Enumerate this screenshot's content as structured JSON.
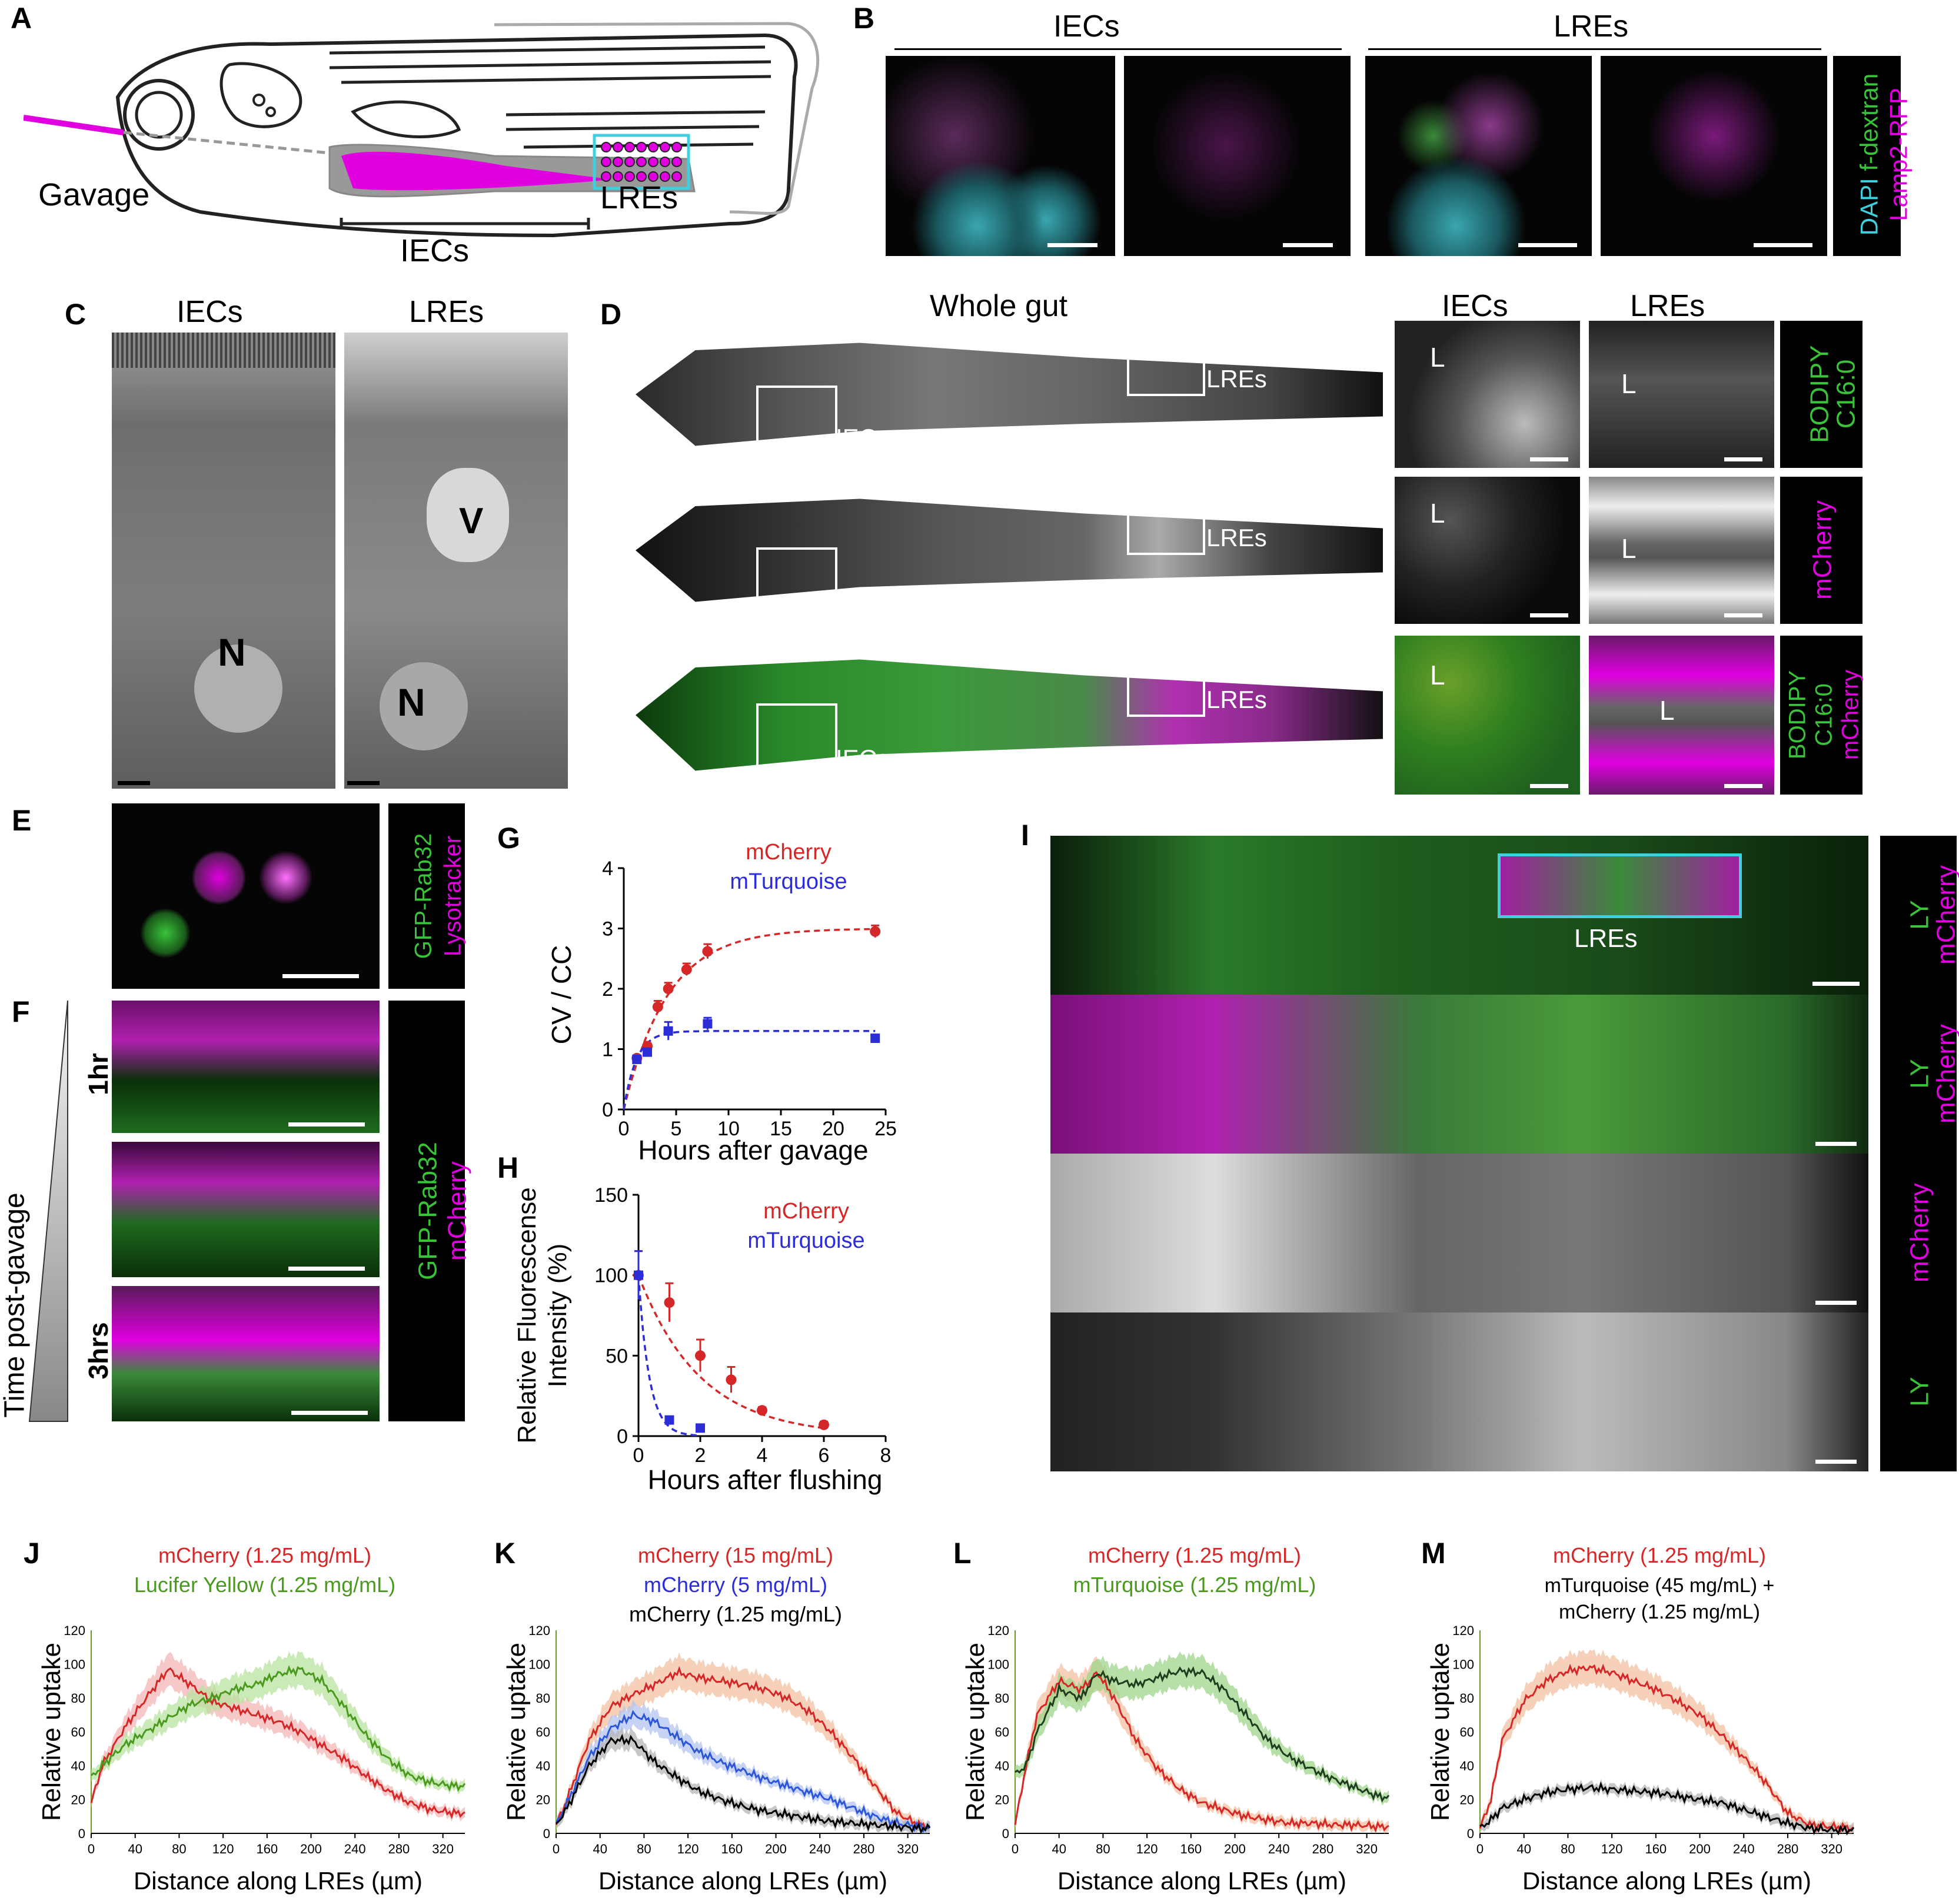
{
  "panels": {
    "A": {
      "letter": "A",
      "gavage": "Gavage",
      "lres": "LREs",
      "iecs": "IECs"
    },
    "B": {
      "letter": "B",
      "iecs": "IECs",
      "lres": "LREs",
      "dapi": "DAPI",
      "fdextran": "f-dextran",
      "lamp2": "Lamp2-RFP"
    },
    "C": {
      "letter": "C",
      "iecs": "IECs",
      "lres": "LREs",
      "n1": "N",
      "n2": "N",
      "v": "V"
    },
    "D": {
      "letter": "D",
      "whole_gut": "Whole gut",
      "iecs": "IECs",
      "lres": "LREs",
      "box_lres": "LREs",
      "box_iecs": "IECs",
      "L": "L",
      "row1_label": [
        "BODIPY",
        "C16:0"
      ],
      "row2_label": "mCherry",
      "row3_label": [
        "BODIPY",
        "C16:0",
        "mCherry"
      ]
    },
    "E": {
      "letter": "E",
      "gfp": "GFP-Rab32",
      "lyso": "Lysotracker"
    },
    "F": {
      "letter": "F",
      "time": "Time post-gavage",
      "t1": "1hr",
      "t3": "3hrs",
      "gfp": "GFP-Rab32",
      "mcherry": "mCherry"
    },
    "G": {
      "letter": "G"
    },
    "H": {
      "letter": "H"
    },
    "I": {
      "letter": "I",
      "lres": "LREs",
      "ly": "LY",
      "mcherry": "mCherry"
    },
    "J": {
      "letter": "J"
    },
    "K": {
      "letter": "K"
    },
    "L": {
      "letter": "L"
    },
    "M": {
      "letter": "M"
    }
  },
  "colors": {
    "magenta": "#e000e0",
    "green": "#39c339",
    "cyan": "#3fd0e0",
    "red": "#d62728",
    "blue": "#2d2dd8",
    "black": "#000000",
    "olive_green": "#4a9a1e"
  },
  "chart_data": [
    {
      "id": "G",
      "type": "scatter",
      "xlabel": "Hours after gavage",
      "ylabel": "CV / CC",
      "xlim": [
        0,
        25
      ],
      "ylim": [
        0,
        4
      ],
      "xticks": [
        "0",
        "5",
        "10",
        "15",
        "20",
        "25"
      ],
      "yticks": [
        "0",
        "1",
        "2",
        "3",
        "4"
      ],
      "series": [
        {
          "name": "mCherry",
          "color": "#d62728",
          "x": [
            1.25,
            2.25,
            3.25,
            4.25,
            6,
            8,
            24
          ],
          "y": [
            0.85,
            1.05,
            1.7,
            2.0,
            2.32,
            2.62,
            2.95
          ],
          "err": [
            0.05,
            0.05,
            0.1,
            0.1,
            0.1,
            0.12,
            0.1
          ]
        },
        {
          "name": "mTurquoise",
          "color": "#2d2dd8",
          "x": [
            1.25,
            2.25,
            4.25,
            8,
            24
          ],
          "y": [
            0.83,
            0.95,
            1.3,
            1.42,
            1.18
          ],
          "err": [
            0.05,
            0.05,
            0.15,
            0.1,
            0.05
          ]
        }
      ]
    },
    {
      "id": "H",
      "type": "scatter",
      "xlabel": "Hours after flushing",
      "ylabel": "Relative Fluorescense Intensity (%)",
      "xlim": [
        0,
        8
      ],
      "ylim": [
        0,
        150
      ],
      "xticks": [
        "0",
        "2",
        "4",
        "6",
        "8"
      ],
      "yticks": [
        "0",
        "50",
        "100",
        "150"
      ],
      "series": [
        {
          "name": "mCherry",
          "color": "#d62728",
          "x": [
            0,
            1,
            2,
            3,
            4,
            6
          ],
          "y": [
            100,
            83,
            50,
            35,
            16,
            7
          ],
          "err": [
            15,
            12,
            10,
            8,
            2,
            2
          ]
        },
        {
          "name": "mTurquoise",
          "color": "#2d2dd8",
          "x": [
            0,
            1,
            2
          ],
          "y": [
            100,
            10,
            5
          ],
          "err": [
            15,
            2,
            1
          ]
        }
      ]
    },
    {
      "id": "J",
      "type": "line",
      "xlabel": "Distance along LREs (µm)",
      "ylabel": "Relative uptake",
      "xlim": [
        0,
        340
      ],
      "ylim": [
        0,
        120
      ],
      "xticks": [
        "0",
        "40",
        "80",
        "120",
        "160",
        "200",
        "240",
        "280",
        "320"
      ],
      "yticks": [
        "0",
        "20",
        "40",
        "60",
        "80",
        "100",
        "120"
      ],
      "series": [
        {
          "name": "mCherry (1.25 mg/mL)",
          "color": "#d62728",
          "band": "#f4b6b6",
          "x": [
            0,
            10,
            30,
            50,
            70,
            90,
            110,
            130,
            150,
            170,
            190,
            210,
            230,
            250,
            270,
            290,
            310,
            330,
            340
          ],
          "y": [
            18,
            40,
            62,
            80,
            97,
            88,
            78,
            74,
            70,
            66,
            60,
            52,
            44,
            34,
            25,
            18,
            14,
            12,
            12
          ]
        },
        {
          "name": "Lucifer Yellow (1.25 mg/mL)",
          "color": "#4a9a1e",
          "band": "#b8e3a0",
          "x": [
            0,
            10,
            30,
            50,
            70,
            90,
            110,
            130,
            150,
            170,
            190,
            210,
            230,
            250,
            270,
            290,
            310,
            330,
            340
          ],
          "y": [
            33,
            40,
            52,
            60,
            68,
            76,
            80,
            85,
            88,
            94,
            97,
            90,
            75,
            58,
            44,
            34,
            30,
            28,
            28
          ]
        }
      ]
    },
    {
      "id": "K",
      "type": "line",
      "xlabel": "Distance along LREs (µm)",
      "ylabel": "Relative uptake",
      "xlim": [
        0,
        340
      ],
      "ylim": [
        0,
        120
      ],
      "xticks": [
        "0",
        "40",
        "80",
        "120",
        "160",
        "200",
        "240",
        "280",
        "320"
      ],
      "yticks": [
        "0",
        "20",
        "40",
        "60",
        "80",
        "100",
        "120"
      ],
      "series": [
        {
          "name": "mCherry (15 mg/mL)",
          "color": "#d62728",
          "band": "#f3c0a0",
          "x": [
            0,
            10,
            30,
            50,
            70,
            90,
            110,
            130,
            150,
            170,
            190,
            210,
            230,
            250,
            270,
            290,
            310,
            330,
            340
          ],
          "y": [
            5,
            20,
            55,
            75,
            82,
            88,
            95,
            92,
            90,
            88,
            85,
            80,
            72,
            60,
            45,
            28,
            12,
            5,
            4
          ]
        },
        {
          "name": "mCherry (5 mg/mL)",
          "color": "#2d56d8",
          "band": "#b3c4f0",
          "x": [
            0,
            10,
            30,
            50,
            70,
            90,
            110,
            130,
            150,
            170,
            190,
            210,
            230,
            250,
            270,
            290,
            310,
            330,
            340
          ],
          "y": [
            5,
            18,
            45,
            62,
            70,
            66,
            57,
            48,
            42,
            37,
            32,
            28,
            24,
            20,
            15,
            10,
            6,
            4,
            3
          ]
        },
        {
          "name": "mCherry (1.25 mg/mL)",
          "color": "#000000",
          "band": "#b5b5b5",
          "x": [
            0,
            10,
            30,
            50,
            70,
            90,
            110,
            130,
            150,
            170,
            190,
            210,
            230,
            250,
            270,
            290,
            310,
            330,
            340
          ],
          "y": [
            5,
            15,
            40,
            55,
            55,
            42,
            33,
            25,
            20,
            16,
            13,
            11,
            9,
            7,
            6,
            5,
            4,
            3,
            3
          ]
        }
      ]
    },
    {
      "id": "L",
      "type": "line",
      "xlabel": "Distance along LREs (µm)",
      "ylabel": "Relative uptake",
      "xlim": [
        0,
        340
      ],
      "ylim": [
        0,
        120
      ],
      "xticks": [
        "0",
        "40",
        "80",
        "120",
        "160",
        "200",
        "240",
        "280",
        "320"
      ],
      "yticks": [
        "0",
        "20",
        "40",
        "60",
        "80",
        "100",
        "120"
      ],
      "series": [
        {
          "name": "mCherry (1.25 mg/mL)",
          "color": "#d62728",
          "band": "#f3c0a0",
          "x": [
            0,
            10,
            20,
            40,
            60,
            75,
            90,
            110,
            130,
            150,
            170,
            190,
            210,
            230,
            250,
            270,
            290,
            310,
            330,
            340
          ],
          "y": [
            5,
            40,
            70,
            90,
            85,
            95,
            80,
            55,
            38,
            26,
            18,
            14,
            10,
            8,
            6,
            6,
            5,
            5,
            4,
            4
          ]
        },
        {
          "name": "mTurquoise (1.25 mg/mL)",
          "color": "#1f3d1f",
          "band": "#9ed68a",
          "x": [
            0,
            10,
            20,
            40,
            60,
            75,
            90,
            110,
            130,
            150,
            170,
            190,
            210,
            230,
            250,
            270,
            290,
            310,
            330,
            340
          ],
          "y": [
            35,
            40,
            60,
            85,
            80,
            95,
            90,
            88,
            92,
            96,
            95,
            85,
            70,
            55,
            45,
            38,
            32,
            27,
            22,
            21
          ]
        }
      ]
    },
    {
      "id": "M",
      "type": "line",
      "xlabel": "Distance along LREs (µm)",
      "ylabel": "Relative uptake",
      "xlim": [
        0,
        340
      ],
      "ylim": [
        0,
        120
      ],
      "xticks": [
        "0",
        "40",
        "80",
        "120",
        "160",
        "200",
        "240",
        "280",
        "320"
      ],
      "yticks": [
        "0",
        "20",
        "40",
        "60",
        "80",
        "100",
        "120"
      ],
      "series": [
        {
          "name": "mCherry (1.25 mg/mL)",
          "color": "#d62728",
          "band": "#f3c0a0",
          "x": [
            0,
            10,
            20,
            40,
            60,
            80,
            100,
            120,
            140,
            160,
            180,
            200,
            220,
            240,
            260,
            280,
            300,
            320,
            340
          ],
          "y": [
            3,
            20,
            55,
            78,
            90,
            96,
            98,
            95,
            90,
            85,
            78,
            70,
            58,
            45,
            30,
            12,
            5,
            4,
            3
          ]
        },
        {
          "name": "mTurquoise (45 mg/mL) + mCherry (1.25 mg/mL)",
          "color": "#000000",
          "band": "#b5b5b5",
          "x": [
            0,
            10,
            20,
            40,
            60,
            80,
            100,
            120,
            140,
            160,
            180,
            200,
            220,
            240,
            260,
            280,
            300,
            320,
            340
          ],
          "y": [
            3,
            8,
            15,
            20,
            24,
            26,
            27,
            26,
            25,
            24,
            22,
            20,
            18,
            14,
            10,
            6,
            3,
            2,
            2
          ]
        }
      ]
    }
  ]
}
